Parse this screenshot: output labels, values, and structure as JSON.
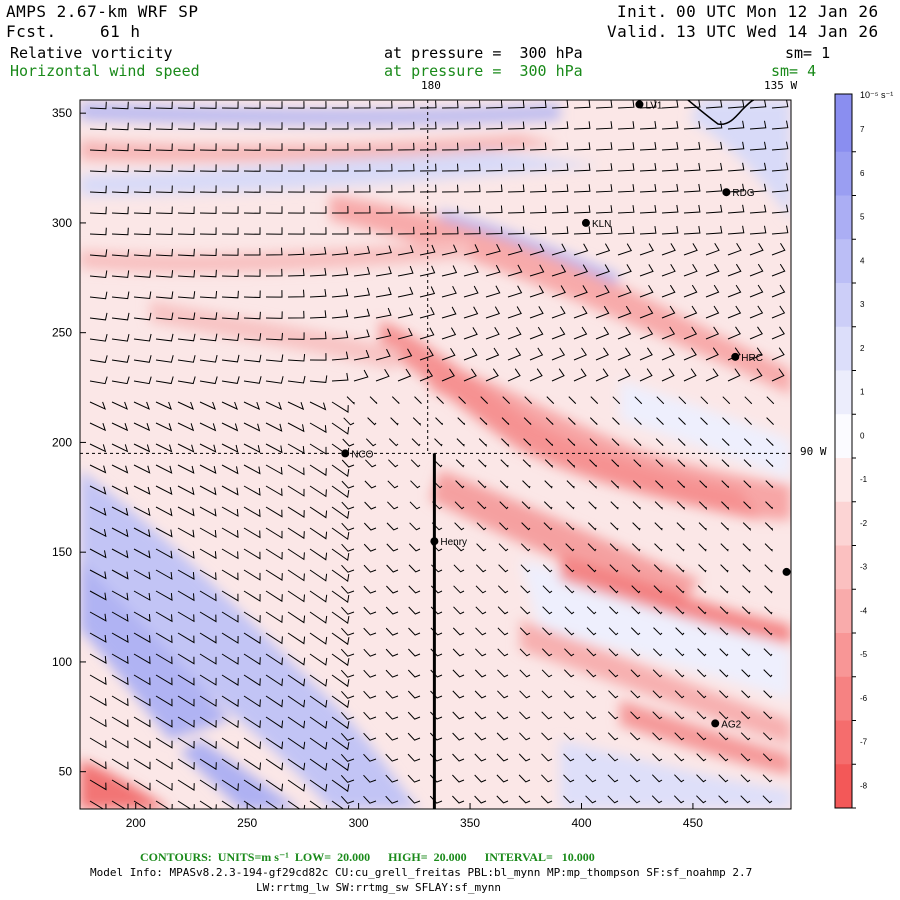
{
  "header": {
    "model": "AMPS 2.67-km WRF SP",
    "fcst_label": "Fcst.",
    "fcst_value": "61 h",
    "init_label": "Init.",
    "init_value": "00 UTC Mon 12 Jan 26",
    "valid_label": "Valid.",
    "valid_value": "13 UTC Wed 14 Jan 26"
  },
  "fields": [
    {
      "name": "Relative vorticity",
      "level": "at pressure =  300 hPa",
      "smooth": "sm= 1",
      "color": "#000000"
    },
    {
      "name": "Horizontal wind speed",
      "level": "at pressure =  300 hPa",
      "smooth": "sm= 4",
      "color": "#1a8a1a"
    }
  ],
  "map": {
    "x_ticks": [
      200,
      250,
      300,
      350,
      400,
      450
    ],
    "y_ticks": [
      50,
      100,
      150,
      200,
      250,
      300,
      350
    ],
    "x_range": [
      175,
      494
    ],
    "y_range": [
      33,
      356
    ],
    "meridian_180_label": "180",
    "meridian_135w_label": "135 W",
    "parallel_90w_label": "90 W",
    "stations": [
      {
        "name": "LV1",
        "x": 426,
        "y": 354
      },
      {
        "name": "RDG",
        "x": 465,
        "y": 314
      },
      {
        "name": "KLN",
        "x": 402,
        "y": 300
      },
      {
        "name": "HRC",
        "x": 469,
        "y": 239
      },
      {
        "name": "NCO",
        "x": 294,
        "y": 195
      },
      {
        "name": "Henry",
        "x": 334,
        "y": 155
      },
      {
        "name": "",
        "x": 492,
        "y": 141
      },
      {
        "name": "AG2",
        "x": 460,
        "y": 72
      }
    ],
    "cross_section": {
      "x": 334,
      "y_from": 33,
      "y_to": 195
    },
    "dashed_meridian_x": 331,
    "dashed_parallel_y": 195
  },
  "colorbar": {
    "units": "10⁻⁵ s⁻¹",
    "labels": [
      "7",
      "6",
      "5",
      "4",
      "3",
      "2",
      "1",
      "0",
      "-1",
      "-2",
      "-3",
      "-4",
      "-5",
      "-6",
      "-7",
      "-8"
    ],
    "colors": [
      "#8a8ef0",
      "#9a9ef2",
      "#abaef4",
      "#bbbef6",
      "#ccceF8",
      "#dcdefa",
      "#ecedfc",
      "#fbfbff",
      "#fde9e9",
      "#fcd4d4",
      "#fbc0c0",
      "#f9abab",
      "#f89696",
      "#f68282",
      "#f56d6d",
      "#f35858"
    ]
  },
  "footer": {
    "contours": "CONTOURS:  UNITS=m s⁻¹  LOW=  20.000      HIGH=  20.000      INTERVAL=   10.000",
    "model_info": "Model Info: MPASv8.2.3-194-gf29cd82c CU:cu_grell_freitas PBL:bl_mynn MP:mp_thompson SF:sf_noahmp 2.7",
    "model_info2": "LW:rrtmg_lw SW:rrtmg_sw SFLAY:sf_mynn"
  }
}
